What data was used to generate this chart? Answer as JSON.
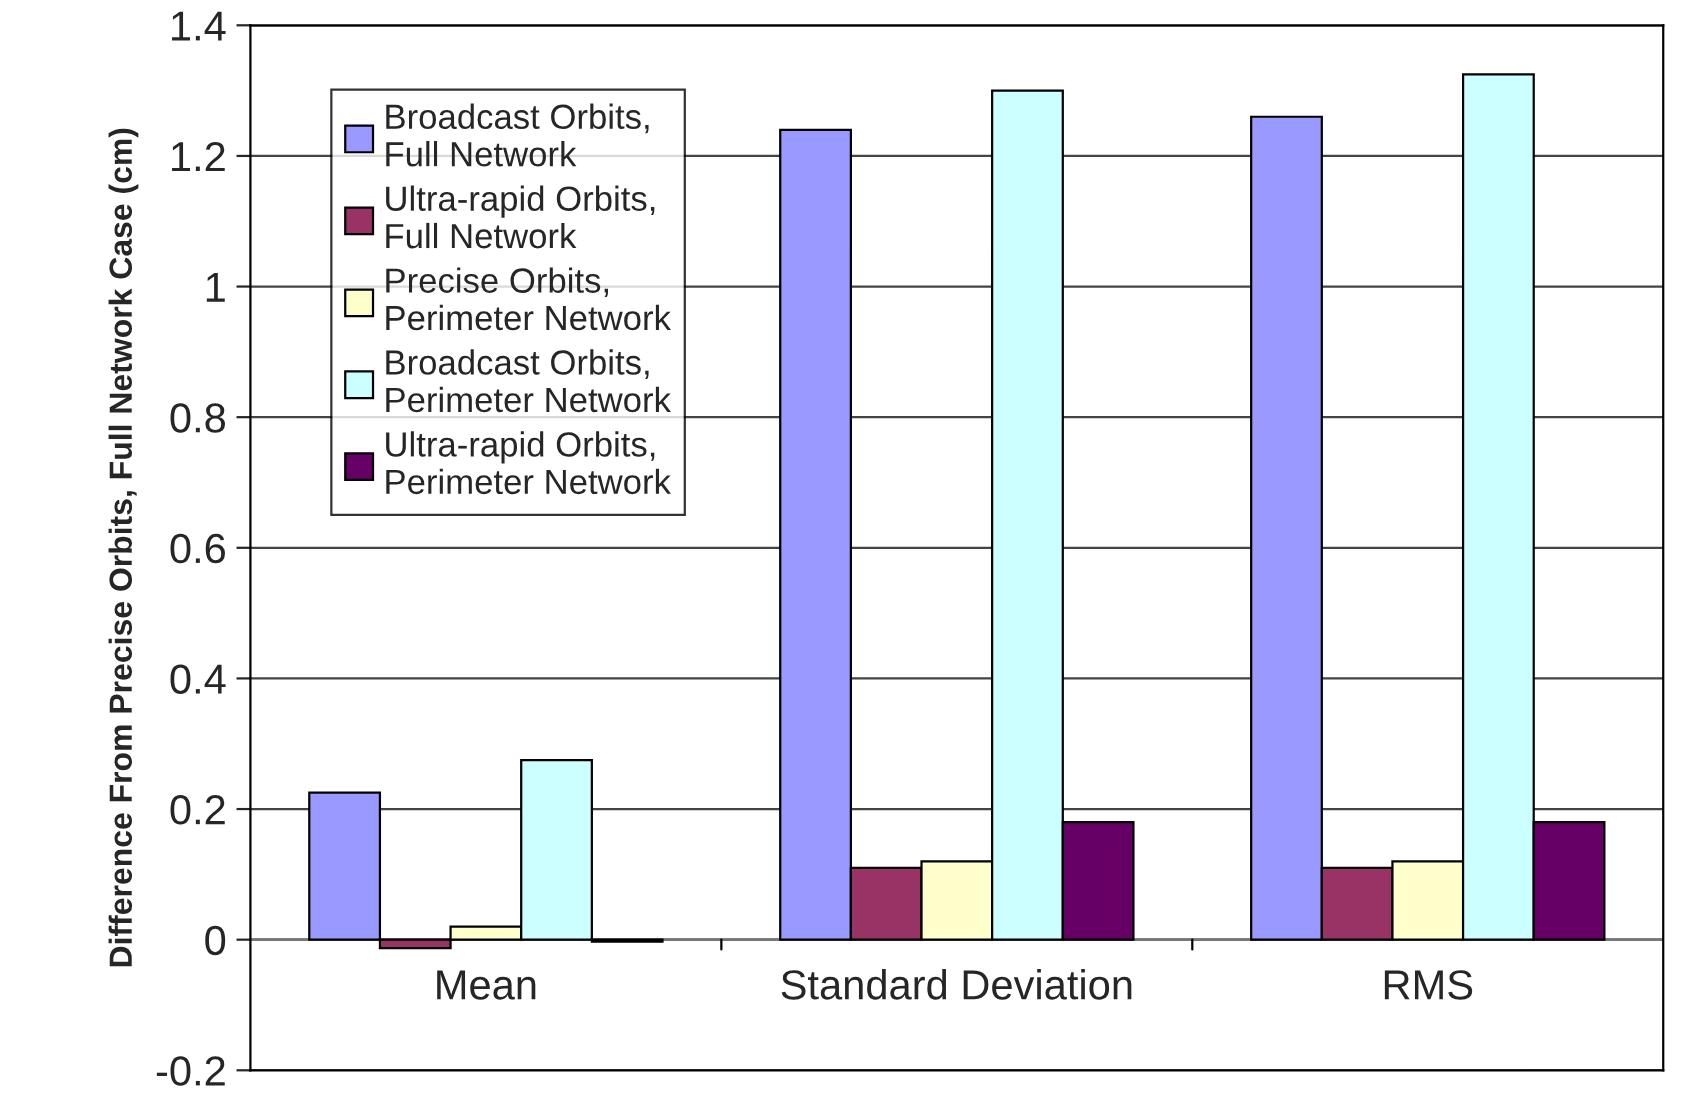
{
  "chart_data": {
    "type": "bar",
    "ylabel": "Difference From Precise Orbits, Full Network Case (cm)",
    "categories": [
      "Mean",
      "Standard Deviation",
      "RMS"
    ],
    "series": [
      {
        "name": "Broadcast Orbits,\nFull Network",
        "color": "#9999ff",
        "values": [
          0.225,
          1.24,
          1.26
        ]
      },
      {
        "name": "Ultra-rapid Orbits,\nFull Network",
        "color": "#993366",
        "values": [
          -0.013,
          0.11,
          0.11
        ]
      },
      {
        "name": "Precise Orbits,\nPerimeter Network",
        "color": "#ffffcc",
        "values": [
          0.02,
          0.12,
          0.12
        ]
      },
      {
        "name": "Broadcast Orbits,\nPerimeter Network",
        "color": "#ccffff",
        "values": [
          0.275,
          1.3,
          1.325
        ]
      },
      {
        "name": "Ultra-rapid Orbits,\nPerimeter Network",
        "color": "#660066",
        "values": [
          -0.003,
          0.18,
          0.18
        ]
      }
    ],
    "ylim": [
      -0.2,
      1.4
    ],
    "yticks": [
      -0.2,
      0,
      0.2,
      0.4,
      0.6,
      0.8,
      1,
      1.2,
      1.4
    ],
    "grid": "y",
    "legend": "top left"
  }
}
